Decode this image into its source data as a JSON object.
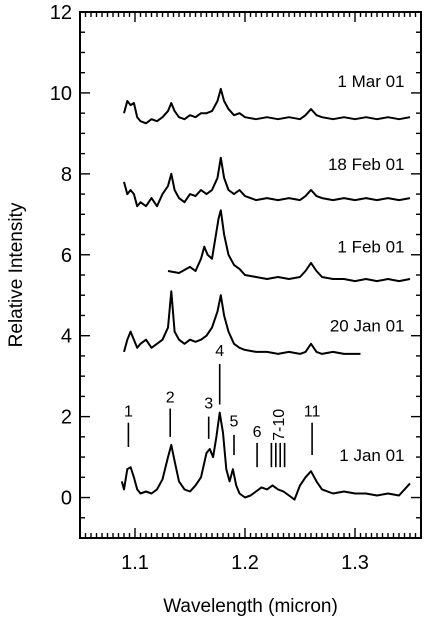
{
  "chart_data": {
    "type": "line",
    "xlabel": "Wavelength  (micron)",
    "ylabel": "Relative Intensity",
    "xlim": [
      1.05,
      1.36
    ],
    "ylim": [
      -1,
      12
    ],
    "x_ticks": [
      {
        "value": 1.1,
        "label": "1.1"
      },
      {
        "value": 1.2,
        "label": "1.2"
      },
      {
        "value": 1.3,
        "label": "1.3"
      }
    ],
    "y_ticks": [
      {
        "value": 0,
        "label": "0"
      },
      {
        "value": 2,
        "label": "2"
      },
      {
        "value": 4,
        "label": "4"
      },
      {
        "value": 6,
        "label": "6"
      },
      {
        "value": 8,
        "label": "8"
      },
      {
        "value": 10,
        "label": "10"
      },
      {
        "value": 12,
        "label": "12"
      }
    ],
    "grid": false,
    "legend": "none",
    "series": [
      {
        "name": "1 Mar 01",
        "label_x": 1.345,
        "label_y": 10.15,
        "x": [
          1.09,
          1.093,
          1.096,
          1.099,
          1.102,
          1.105,
          1.11,
          1.115,
          1.12,
          1.125,
          1.13,
          1.133,
          1.136,
          1.14,
          1.145,
          1.15,
          1.155,
          1.16,
          1.165,
          1.17,
          1.175,
          1.178,
          1.181,
          1.185,
          1.19,
          1.195,
          1.2,
          1.21,
          1.22,
          1.23,
          1.24,
          1.25,
          1.255,
          1.26,
          1.265,
          1.27,
          1.28,
          1.29,
          1.3,
          1.31,
          1.32,
          1.33,
          1.34,
          1.35
        ],
        "y": [
          9.5,
          9.8,
          9.7,
          9.75,
          9.4,
          9.3,
          9.25,
          9.35,
          9.3,
          9.4,
          9.55,
          9.75,
          9.55,
          9.4,
          9.35,
          9.45,
          9.4,
          9.5,
          9.5,
          9.55,
          9.8,
          10.1,
          9.8,
          9.6,
          9.45,
          9.5,
          9.4,
          9.35,
          9.4,
          9.35,
          9.4,
          9.35,
          9.45,
          9.6,
          9.45,
          9.4,
          9.35,
          9.4,
          9.35,
          9.4,
          9.35,
          9.4,
          9.35,
          9.4
        ]
      },
      {
        "name": "18 Feb 01",
        "label_x": 1.345,
        "label_y": 8.1,
        "x": [
          1.09,
          1.093,
          1.096,
          1.099,
          1.102,
          1.105,
          1.11,
          1.115,
          1.12,
          1.125,
          1.13,
          1.133,
          1.136,
          1.14,
          1.145,
          1.15,
          1.155,
          1.16,
          1.165,
          1.17,
          1.175,
          1.178,
          1.181,
          1.185,
          1.19,
          1.195,
          1.2,
          1.21,
          1.22,
          1.23,
          1.24,
          1.25,
          1.255,
          1.26,
          1.265,
          1.27,
          1.28,
          1.29,
          1.3,
          1.31,
          1.32,
          1.33,
          1.34,
          1.35
        ],
        "y": [
          7.8,
          7.5,
          7.6,
          7.5,
          7.2,
          7.3,
          7.2,
          7.4,
          7.2,
          7.5,
          7.7,
          8.0,
          7.6,
          7.4,
          7.3,
          7.5,
          7.45,
          7.6,
          7.5,
          7.6,
          7.9,
          8.4,
          7.9,
          7.6,
          7.5,
          7.6,
          7.45,
          7.35,
          7.4,
          7.35,
          7.4,
          7.35,
          7.45,
          7.6,
          7.45,
          7.4,
          7.35,
          7.4,
          7.35,
          7.4,
          7.35,
          7.4,
          7.35,
          7.4
        ]
      },
      {
        "name": "1 Feb 01",
        "label_x": 1.345,
        "label_y": 6.05,
        "x": [
          1.13,
          1.14,
          1.15,
          1.155,
          1.16,
          1.163,
          1.166,
          1.17,
          1.173,
          1.176,
          1.178,
          1.181,
          1.185,
          1.19,
          1.195,
          1.2,
          1.21,
          1.22,
          1.23,
          1.24,
          1.25,
          1.255,
          1.26,
          1.265,
          1.27,
          1.28,
          1.29,
          1.3,
          1.31,
          1.32,
          1.33,
          1.34,
          1.35
        ],
        "y": [
          5.6,
          5.55,
          5.7,
          5.6,
          5.9,
          6.2,
          6.0,
          5.9,
          6.4,
          6.9,
          7.1,
          6.5,
          6.0,
          5.75,
          5.65,
          5.5,
          5.45,
          5.4,
          5.45,
          5.4,
          5.45,
          5.6,
          5.8,
          5.6,
          5.45,
          5.4,
          5.4,
          5.35,
          5.4,
          5.35,
          5.4,
          5.35,
          5.4
        ]
      },
      {
        "name": "20 Jan 01",
        "label_x": 1.345,
        "label_y": 4.1,
        "x": [
          1.09,
          1.093,
          1.096,
          1.099,
          1.102,
          1.105,
          1.11,
          1.115,
          1.12,
          1.125,
          1.13,
          1.133,
          1.136,
          1.14,
          1.145,
          1.15,
          1.155,
          1.16,
          1.165,
          1.17,
          1.175,
          1.178,
          1.181,
          1.185,
          1.19,
          1.195,
          1.2,
          1.21,
          1.22,
          1.23,
          1.24,
          1.25,
          1.255,
          1.26,
          1.265,
          1.27,
          1.28,
          1.29,
          1.3,
          1.305
        ],
        "y": [
          3.6,
          3.9,
          4.1,
          3.9,
          3.7,
          3.8,
          3.9,
          3.7,
          3.8,
          3.9,
          4.2,
          5.1,
          4.1,
          3.9,
          3.8,
          3.9,
          3.85,
          3.9,
          4.0,
          4.2,
          4.6,
          5.0,
          4.5,
          4.1,
          3.8,
          3.7,
          3.65,
          3.6,
          3.6,
          3.55,
          3.6,
          3.55,
          3.6,
          3.8,
          3.6,
          3.55,
          3.6,
          3.55,
          3.55,
          3.55
        ]
      },
      {
        "name": "1 Jan 01",
        "label_x": 1.345,
        "label_y": 0.9,
        "x": [
          1.088,
          1.09,
          1.093,
          1.096,
          1.099,
          1.102,
          1.105,
          1.11,
          1.115,
          1.12,
          1.125,
          1.13,
          1.133,
          1.136,
          1.14,
          1.145,
          1.15,
          1.155,
          1.16,
          1.165,
          1.168,
          1.171,
          1.174,
          1.177,
          1.18,
          1.183,
          1.186,
          1.189,
          1.192,
          1.195,
          1.2,
          1.205,
          1.21,
          1.215,
          1.22,
          1.225,
          1.23,
          1.235,
          1.24,
          1.245,
          1.25,
          1.255,
          1.26,
          1.265,
          1.27,
          1.28,
          1.29,
          1.3,
          1.31,
          1.32,
          1.33,
          1.34,
          1.35
        ],
        "y": [
          0.4,
          0.2,
          0.7,
          0.75,
          0.5,
          0.2,
          0.1,
          0.15,
          0.1,
          0.2,
          0.45,
          1.0,
          1.3,
          0.9,
          0.4,
          0.2,
          0.15,
          0.3,
          0.5,
          1.1,
          1.2,
          1.0,
          1.5,
          2.1,
          1.6,
          0.7,
          0.4,
          0.7,
          0.3,
          0.1,
          0.0,
          0.05,
          0.15,
          0.25,
          0.2,
          0.3,
          0.2,
          0.15,
          0.05,
          -0.05,
          0.3,
          0.5,
          0.65,
          0.4,
          0.2,
          0.1,
          0.15,
          0.1,
          0.1,
          0.05,
          0.1,
          0.05,
          0.35
        ]
      }
    ],
    "line_markers": [
      {
        "label": "1",
        "x": 1.094,
        "y_bottom": 1.25,
        "y_top": 1.85,
        "label_y": 2.0
      },
      {
        "label": "2",
        "x": 1.132,
        "y_bottom": 1.5,
        "y_top": 2.2,
        "label_y": 2.35
      },
      {
        "label": "3",
        "x": 1.167,
        "y_bottom": 1.45,
        "y_top": 2.0,
        "label_y": 2.2
      },
      {
        "label": "4",
        "x": 1.177,
        "y_bottom": 2.3,
        "y_top": 3.3,
        "label_y": 3.5
      },
      {
        "label": "5",
        "x": 1.19,
        "y_bottom": 1.05,
        "y_top": 1.55,
        "label_y": 1.75
      },
      {
        "label": "6",
        "x": 1.211,
        "y_bottom": 0.75,
        "y_top": 1.35,
        "label_y": 1.5
      },
      {
        "label": "7-10",
        "x": 1.23,
        "y_bottom": 0.75,
        "y_top": 1.35,
        "label_y": 1.4,
        "ticks": [
          1.224,
          1.228,
          1.232,
          1.236
        ]
      },
      {
        "label": "11",
        "x": 1.261,
        "y_bottom": 1.05,
        "y_top": 1.85,
        "label_y": 2.0
      }
    ]
  }
}
